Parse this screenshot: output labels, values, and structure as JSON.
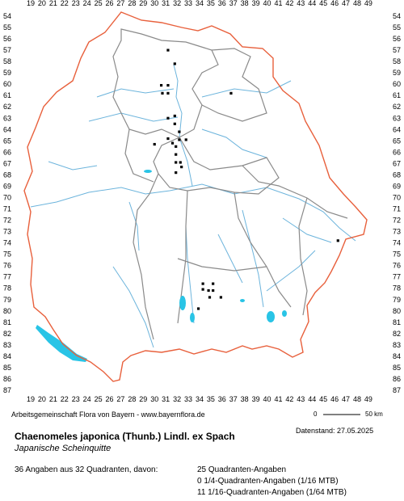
{
  "grid": {
    "columns": [
      19,
      20,
      21,
      22,
      23,
      24,
      25,
      26,
      27,
      28,
      29,
      30,
      31,
      32,
      33,
      34,
      35,
      36,
      37,
      38,
      39,
      40,
      41,
      42,
      43,
      44,
      45,
      46,
      47,
      48,
      49
    ],
    "rows": [
      54,
      55,
      56,
      57,
      58,
      59,
      60,
      61,
      62,
      63,
      64,
      65,
      66,
      67,
      68,
      69,
      70,
      71,
      72,
      73,
      74,
      75,
      76,
      77,
      78,
      79,
      80,
      81,
      82,
      83,
      84,
      85,
      86,
      87
    ]
  },
  "credit": "Arbeitsgemeinschaft Flora von Bayern - www.bayernflora.de",
  "date": "Datenstand: 27.05.2025",
  "scale": {
    "start": "0",
    "end": "50 km"
  },
  "species_name": "Chaenomeles japonica (Thunb.) Lindl. ex Spach",
  "german_name": "Japanische Scheinquitte",
  "summary": "36 Angaben aus 32 Quadranten, davon:",
  "breakdown": [
    "25 Quadranten-Angaben",
    "0 1/4-Quadranten-Angaben (1/16 MTB)",
    "11 1/16-Quadranten-Angaben (1/64 MTB)"
  ],
  "colors": {
    "state_border": "#e8603c",
    "district_border": "#8a8a8a",
    "river": "#6cb4dc",
    "lake": "#29c4e6",
    "dot": "#000000"
  },
  "occurrences": [
    {
      "col": 31.2,
      "row": 57.0
    },
    {
      "col": 31.8,
      "row": 58.2
    },
    {
      "col": 30.6,
      "row": 60.1
    },
    {
      "col": 31.2,
      "row": 60.1
    },
    {
      "col": 30.7,
      "row": 60.8
    },
    {
      "col": 31.2,
      "row": 60.8
    },
    {
      "col": 36.8,
      "row": 60.8
    },
    {
      "col": 31.2,
      "row": 63.0
    },
    {
      "col": 31.8,
      "row": 62.8
    },
    {
      "col": 31.8,
      "row": 63.5
    },
    {
      "col": 32.2,
      "row": 64.2
    },
    {
      "col": 31.2,
      "row": 64.8
    },
    {
      "col": 31.6,
      "row": 65.2
    },
    {
      "col": 32.2,
      "row": 64.9
    },
    {
      "col": 32.8,
      "row": 64.9
    },
    {
      "col": 30.0,
      "row": 65.3
    },
    {
      "col": 31.9,
      "row": 65.5
    },
    {
      "col": 31.9,
      "row": 66.2
    },
    {
      "col": 31.9,
      "row": 66.9
    },
    {
      "col": 32.3,
      "row": 66.9
    },
    {
      "col": 32.4,
      "row": 67.3
    },
    {
      "col": 31.9,
      "row": 67.8
    },
    {
      "col": 34.3,
      "row": 77.6
    },
    {
      "col": 35.2,
      "row": 77.6
    },
    {
      "col": 34.3,
      "row": 78.1
    },
    {
      "col": 34.8,
      "row": 78.2
    },
    {
      "col": 35.2,
      "row": 78.2
    },
    {
      "col": 34.9,
      "row": 78.8
    },
    {
      "col": 35.9,
      "row": 78.8
    },
    {
      "col": 33.9,
      "row": 79.8
    },
    {
      "col": 46.3,
      "row": 73.8
    }
  ]
}
